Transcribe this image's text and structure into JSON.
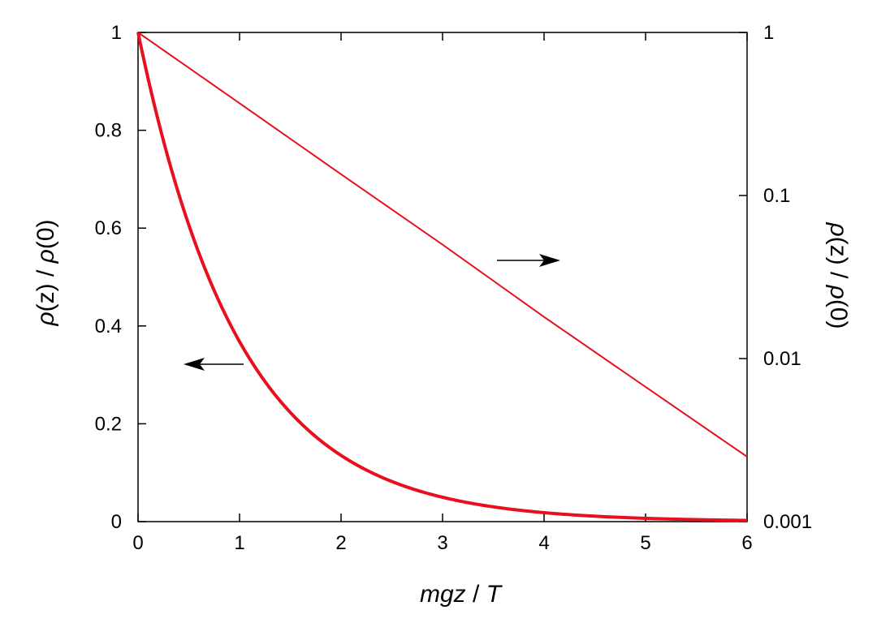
{
  "chart_data": {
    "type": "line",
    "xlabel": "mgz / T",
    "ylabel_left": "ρ(z) / ρ(0)",
    "ylabel_right": "ρ(z) / ρ(0)",
    "xlim": [
      0,
      6
    ],
    "ylim_left": [
      0,
      1
    ],
    "ylim_right": [
      0.001,
      1
    ],
    "right_axis_scale": "log",
    "grid": false,
    "x_ticks": [
      "0",
      "1",
      "2",
      "3",
      "4",
      "5",
      "6"
    ],
    "y_left_ticks": [
      "0",
      "0.2",
      "0.4",
      "0.6",
      "0.8",
      "1"
    ],
    "y_right_ticks": [
      "0.001",
      "0.01",
      "0.1",
      "1"
    ],
    "series": [
      {
        "axis": "left",
        "scale": "linear",
        "color": "#e8101e",
        "function": "exp(-x)",
        "x": [
          0,
          0.25,
          0.5,
          0.75,
          1,
          1.5,
          2,
          2.5,
          3,
          3.5,
          4,
          4.5,
          5,
          5.5,
          6
        ],
        "y": [
          1,
          0.779,
          0.607,
          0.472,
          0.368,
          0.223,
          0.135,
          0.082,
          0.05,
          0.03,
          0.018,
          0.011,
          0.0067,
          0.0041,
          0.0025
        ],
        "annotation": "arrow-left"
      },
      {
        "axis": "right",
        "scale": "log",
        "color": "#e8101e",
        "function": "exp(-x)",
        "x": [
          0,
          1,
          2,
          3,
          4,
          5,
          6
        ],
        "y": [
          1,
          0.368,
          0.135,
          0.05,
          0.018,
          0.0067,
          0.0025
        ],
        "annotation": "arrow-right"
      }
    ]
  }
}
